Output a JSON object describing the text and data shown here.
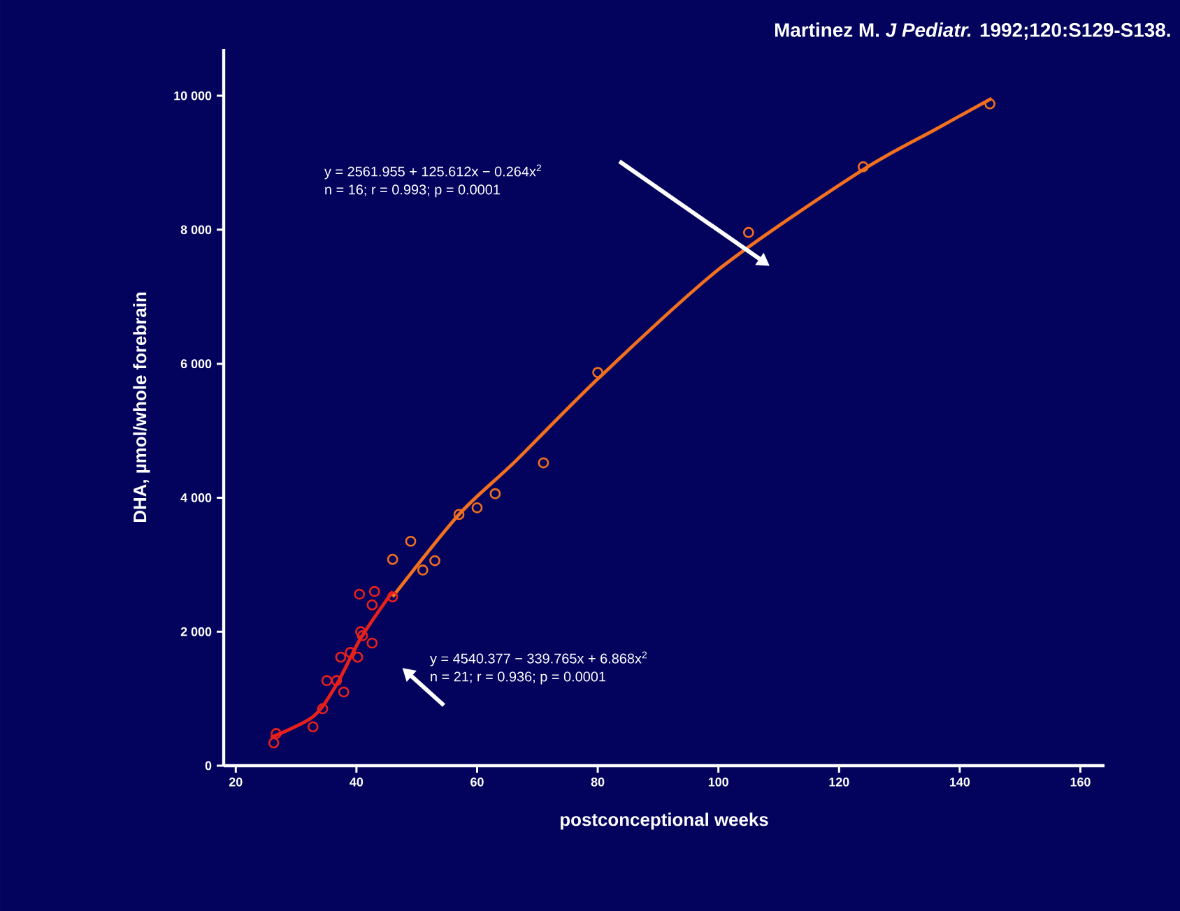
{
  "chart_data": {
    "type": "scatter",
    "xlabel": "postconceptional weeks",
    "ylabel": "DHA, µmol/whole forebrain",
    "xlim": [
      18,
      164
    ],
    "ylim": [
      0,
      10700
    ],
    "xticks": [
      20,
      40,
      60,
      80,
      100,
      120,
      140,
      160
    ],
    "yticks": [
      0,
      {
        "value": 2000,
        "label": "2 000"
      },
      {
        "value": 4000,
        "label": "4 000"
      },
      {
        "value": 6000,
        "label": "6 000"
      },
      {
        "value": 8000,
        "label": "8 000"
      },
      {
        "value": 10000,
        "label": "10 000"
      }
    ],
    "grid": false,
    "marker": "circle",
    "series": [
      {
        "color": "#f2701e",
        "x": [
          145,
          124,
          105,
          80,
          71,
          63,
          60,
          57,
          49,
          46,
          53,
          51
        ],
        "values": [
          9880,
          8940,
          7960,
          5870,
          4520,
          4060,
          3850,
          3750,
          3350,
          3080,
          3060,
          2920
        ]
      },
      {
        "color": "#e8201c",
        "x": [
          40.5,
          43,
          46,
          42.6,
          40.7,
          42.6,
          41,
          37.4,
          39,
          40.2,
          35.1,
          36.7,
          37.9,
          34.4,
          32.8,
          26.7,
          26.3
        ],
        "values": [
          2560,
          2600,
          2520,
          2400,
          2000,
          1830,
          1940,
          1620,
          1690,
          1620,
          1270,
          1270,
          1100,
          850,
          580,
          480,
          340
        ]
      },
      {
        "type": "line",
        "marker": "none",
        "color": "#f2701e",
        "x": [
          46,
          57,
          66.3,
          80.2,
          100.2,
          123.5,
          136,
          145.3
        ],
        "values": [
          2520,
          3750,
          4540,
          5790,
          7420,
          8870,
          9500,
          9960
        ]
      },
      {
        "type": "line",
        "marker": "none",
        "color": "#e8201c",
        "x": [
          25.8,
          32.8,
          36.7,
          40.7,
          46
        ],
        "values": [
          420,
          730,
          1210,
          1900,
          2600
        ]
      }
    ],
    "annotations": [
      "**Martinez M. *J Pediatr.* 1992;120:S129-S138.**",
      "y = 2561.955 + 125.612x − 0.264x$^{2}$",
      "n = 16; r = 0.993; p = 0.0001",
      "y = 4540.377 − 339.765x + 6.868x$^{2}$",
      "n = 21; r = 0.936; p = 0.0001"
    ]
  }
}
